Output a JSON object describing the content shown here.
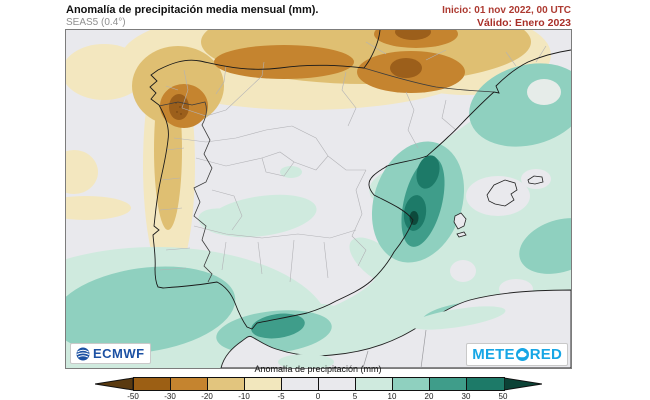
{
  "header": {
    "title": "Anomalía de precipitación media mensual (mm).",
    "subtitle": "SEAS5 (0.4°)",
    "init": "Inicio: 01 nov 2022, 00 UTC",
    "valid": "Válido: Enero 2023"
  },
  "logos": {
    "ecmwf": "ECMWF",
    "meteored_pre": "METE",
    "meteored_post": "RED"
  },
  "map": {
    "region": "Iberian Peninsula and western Mediterranean",
    "model": "SEAS5 seasonal forecast, 0.4 degree grid",
    "anomaly_regions": [
      {
        "area": "Galicia / NW coast",
        "anomaly_mm": "-20 to -50"
      },
      {
        "area": "Cantabrian coast and Bay of Biscay",
        "anomaly_mm": "-10 to -30"
      },
      {
        "area": "Pyrenees",
        "anomaly_mm": "-20 to -50"
      },
      {
        "area": "Portugal west coast",
        "anomaly_mm": "-10 to -20"
      },
      {
        "area": "Interior plateau (Meseta)",
        "anomaly_mm": "-5 to +5"
      },
      {
        "area": "Central Spain (Tagus basin)",
        "anomaly_mm": "+5 to +10"
      },
      {
        "area": "Valencia coast",
        "anomaly_mm": "+20 to +50"
      },
      {
        "area": "Western Mediterranean / Balearic Sea",
        "anomaly_mm": "+5 to +20"
      },
      {
        "area": "Gulf of Lion",
        "anomaly_mm": "+10 to +20"
      },
      {
        "area": "Alboran Sea / Strait of Gibraltar",
        "anomaly_mm": "+10 to +30"
      },
      {
        "area": "Gulf of Cádiz (SW Atlantic)",
        "anomaly_mm": "+5 to +20"
      }
    ]
  },
  "colorbar": {
    "label": "Anomalía de precipitación (mm)",
    "ticks": [
      "-50",
      "-30",
      "-20",
      "-10",
      "-5",
      "0",
      "5",
      "10",
      "20",
      "30",
      "50"
    ],
    "segment_colors": [
      "#9c5f14",
      "#c5842f",
      "#e2c57e",
      "#f2e7bd",
      "#e9e9ed",
      "#e9e9ed",
      "#cfeade",
      "#8fd0bf",
      "#3f9d8a",
      "#1d7a68"
    ],
    "arrow_left_color": "#5a3a10",
    "arrow_right_color": "#0b4236"
  }
}
